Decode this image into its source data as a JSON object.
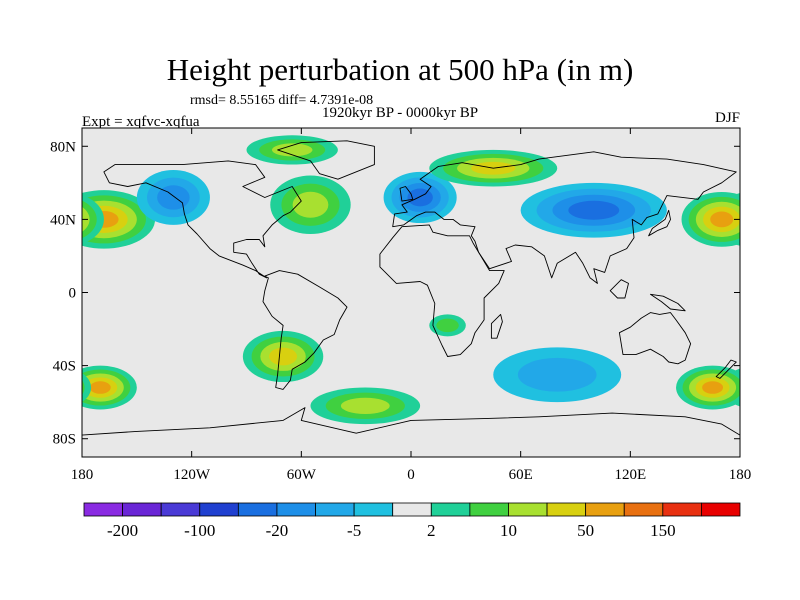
{
  "title": "Height perturbation at 500 hPa (in m)",
  "stats_text": "rmsd= 8.55165 diff= 4.7391e-08",
  "period_text": "1920kyr BP - 0000kyr BP",
  "expt_text": "Expt = xqfvc-xqfua",
  "season_text": "DJF",
  "chart_data": {
    "type": "heatmap",
    "title": "Height perturbation at 500 hPa (in m)",
    "variable": "500 hPa geopotential height perturbation",
    "units": "m",
    "xlim": [
      -180,
      180
    ],
    "ylim": [
      -90,
      90
    ],
    "x_ticks": [
      {
        "value": -180,
        "label": "180"
      },
      {
        "value": -120,
        "label": "120W"
      },
      {
        "value": -60,
        "label": "60W"
      },
      {
        "value": 0,
        "label": "0"
      },
      {
        "value": 60,
        "label": "60E"
      },
      {
        "value": 120,
        "label": "120E"
      },
      {
        "value": 180,
        "label": "180"
      }
    ],
    "y_ticks": [
      {
        "value": 80,
        "label": "80N"
      },
      {
        "value": 40,
        "label": "40N"
      },
      {
        "value": 0,
        "label": "0"
      },
      {
        "value": -40,
        "label": "40S"
      },
      {
        "value": -80,
        "label": "80S"
      }
    ],
    "colorbar": {
      "colors": [
        "#8a2be2",
        "#6a26d6",
        "#4a3ad6",
        "#2040d0",
        "#1a6fe0",
        "#1e8fe8",
        "#22a8e8",
        "#20c0e0",
        "#e8e8e8",
        "#20d098",
        "#40d040",
        "#a8e030",
        "#d8d010",
        "#e8a010",
        "#e87010",
        "#e83010",
        "#e80000"
      ],
      "labels": [
        {
          "boundary": 1,
          "label": "-200"
        },
        {
          "boundary": 3,
          "label": "-100"
        },
        {
          "boundary": 5,
          "label": "-20"
        },
        {
          "boundary": 7,
          "label": "-5"
        },
        {
          "boundary": 9,
          "label": "2"
        },
        {
          "boundary": 11,
          "label": "10"
        },
        {
          "boundary": 13,
          "label": "50"
        },
        {
          "boundary": 15,
          "label": "150"
        }
      ]
    },
    "features": [
      {
        "name": "n-pacific-high",
        "lon": -168,
        "lat": 40,
        "rx": 28,
        "ry": 16,
        "level": 13
      },
      {
        "name": "n-america-low",
        "lon": -130,
        "lat": 52,
        "rx": 20,
        "ry": 15,
        "level": 5
      },
      {
        "name": "n-atlantic-high",
        "lon": -55,
        "lat": 48,
        "rx": 22,
        "ry": 16,
        "level": 11
      },
      {
        "name": "arctic-high",
        "lon": -65,
        "lat": 78,
        "rx": 25,
        "ry": 8,
        "level": 11
      },
      {
        "name": "europe-low",
        "lon": 5,
        "lat": 52,
        "rx": 20,
        "ry": 14,
        "level": 4
      },
      {
        "name": "eurasia-high",
        "lon": 45,
        "lat": 68,
        "rx": 35,
        "ry": 10,
        "level": 12
      },
      {
        "name": "asia-low",
        "lon": 100,
        "lat": 45,
        "rx": 40,
        "ry": 15,
        "level": 4
      },
      {
        "name": "w-pacific-high",
        "lon": 170,
        "lat": 40,
        "rx": 22,
        "ry": 15,
        "level": 13
      },
      {
        "name": "s-pacific-high",
        "lon": -170,
        "lat": -52,
        "rx": 20,
        "ry": 12,
        "level": 13
      },
      {
        "name": "s-america-high",
        "lon": -70,
        "lat": -35,
        "rx": 22,
        "ry": 14,
        "level": 12
      },
      {
        "name": "s-atlantic-high",
        "lon": -25,
        "lat": -62,
        "rx": 30,
        "ry": 10,
        "level": 11
      },
      {
        "name": "s-africa-high",
        "lon": 20,
        "lat": -18,
        "rx": 10,
        "ry": 6,
        "level": 10
      },
      {
        "name": "indian-ocean-low",
        "lon": 80,
        "lat": -45,
        "rx": 35,
        "ry": 15,
        "level": 6
      },
      {
        "name": "australia-high",
        "lon": 165,
        "lat": -52,
        "rx": 20,
        "ry": 12,
        "level": 13
      }
    ]
  }
}
